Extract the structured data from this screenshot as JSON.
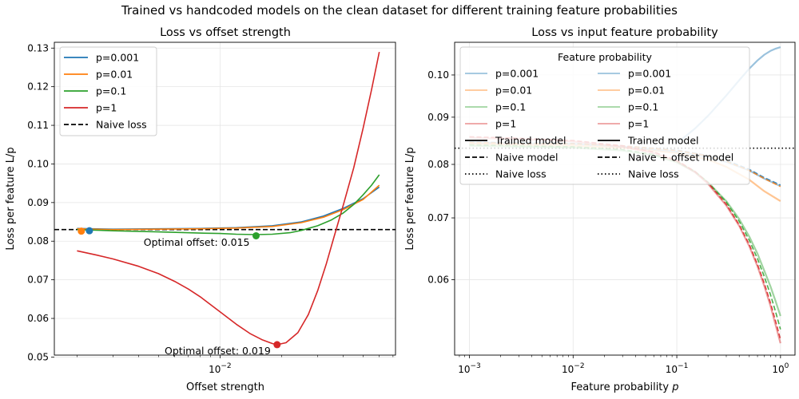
{
  "figure": {
    "suptitle": "Trained vs handcoded models on the clean dataset for different training feature probabilities"
  },
  "colors": {
    "p=0.001": "#1f77b4",
    "p=0.01": "#ff7f0e",
    "p=0.1": "#2ca02c",
    "p=1": "#d62728",
    "naive": "#000000",
    "grid": "#e6e6e6"
  },
  "chart_data": [
    {
      "type": "line",
      "title": "Loss vs offset strength",
      "xlabel": "Offset strength",
      "ylabel": "Loss per feature L/p",
      "xscale": "log",
      "xlim": [
        0.00155,
        0.072
      ],
      "ylim": [
        0.0505,
        0.1315
      ],
      "xticks": [
        {
          "value": 0.01,
          "label": "10^-2"
        }
      ],
      "yticks": [
        0.05,
        0.06,
        0.07,
        0.08,
        0.09,
        0.1,
        0.11,
        0.12,
        0.13
      ],
      "ytick_labels": [
        "0.05",
        "0.06",
        "0.07",
        "0.08",
        "0.09",
        "0.10",
        "0.11",
        "0.12",
        "0.13"
      ],
      "grid": true,
      "legend": {
        "location": "upper-left",
        "entries": [
          {
            "label": "p=0.001",
            "color": "#1f77b4",
            "style": "solid"
          },
          {
            "label": "p=0.01",
            "color": "#ff7f0e",
            "style": "solid"
          },
          {
            "label": "p=0.1",
            "color": "#2ca02c",
            "style": "solid"
          },
          {
            "label": "p=1",
            "color": "#d62728",
            "style": "solid"
          },
          {
            "label": "Naive loss",
            "color": "#000000",
            "style": "dashed"
          }
        ]
      },
      "series": [
        {
          "name": "p=0.001",
          "color": "#1f77b4",
          "x": [
            0.002,
            0.003,
            0.005,
            0.008,
            0.012,
            0.018,
            0.025,
            0.032,
            0.04,
            0.05,
            0.06
          ],
          "y": [
            0.0833,
            0.0831,
            0.0832,
            0.0833,
            0.0835,
            0.084,
            0.085,
            0.0865,
            0.0885,
            0.091,
            0.094
          ]
        },
        {
          "name": "p=0.01",
          "color": "#ff7f0e",
          "x": [
            0.002,
            0.003,
            0.005,
            0.008,
            0.012,
            0.018,
            0.025,
            0.032,
            0.04,
            0.05,
            0.06
          ],
          "y": [
            0.0832,
            0.083,
            0.0831,
            0.0832,
            0.0834,
            0.0838,
            0.0848,
            0.0862,
            0.0882,
            0.0908,
            0.0945
          ]
        },
        {
          "name": "p=0.1",
          "color": "#2ca02c",
          "x": [
            0.002,
            0.003,
            0.005,
            0.008,
            0.01,
            0.012,
            0.015,
            0.018,
            0.022,
            0.025,
            0.03,
            0.035,
            0.04,
            0.045,
            0.05,
            0.055,
            0.06
          ],
          "y": [
            0.083,
            0.0827,
            0.0824,
            0.0821,
            0.082,
            0.0818,
            0.0817,
            0.0818,
            0.0822,
            0.0828,
            0.084,
            0.0855,
            0.0873,
            0.0895,
            0.092,
            0.0945,
            0.0972
          ]
        },
        {
          "name": "p=1",
          "color": "#d62728",
          "x": [
            0.002,
            0.0025,
            0.003,
            0.004,
            0.005,
            0.006,
            0.007,
            0.008,
            0.01,
            0.012,
            0.014,
            0.016,
            0.018,
            0.019,
            0.021,
            0.024,
            0.027,
            0.03,
            0.033,
            0.036,
            0.04,
            0.045,
            0.05,
            0.055,
            0.06
          ],
          "y": [
            0.0775,
            0.0764,
            0.0754,
            0.0735,
            0.0716,
            0.0696,
            0.0676,
            0.0656,
            0.0617,
            0.0585,
            0.0561,
            0.0545,
            0.0535,
            0.0532,
            0.0537,
            0.0563,
            0.061,
            0.0672,
            0.074,
            0.081,
            0.0893,
            0.099,
            0.1092,
            0.1192,
            0.129
          ]
        }
      ],
      "reference_lines": [
        {
          "label": "Naive loss",
          "y": 0.083,
          "style": "dashed",
          "color": "#000000"
        }
      ],
      "markers": [
        {
          "series": "p=0.001",
          "x": 0.0023,
          "y": 0.0827,
          "color": "#1f77b4"
        },
        {
          "series": "p=0.01",
          "x": 0.0021,
          "y": 0.0826,
          "color": "#ff7f0e"
        },
        {
          "series": "p=0.1",
          "x": 0.015,
          "y": 0.0814,
          "color": "#2ca02c"
        },
        {
          "series": "p=1",
          "x": 0.019,
          "y": 0.0532,
          "color": "#d62728"
        }
      ],
      "annotations": [
        {
          "text": "Optimal offset: 0.015",
          "x": 0.015,
          "y": 0.0796,
          "anchor": "end"
        },
        {
          "text": "Optimal offset: 0.019",
          "x": 0.019,
          "y": 0.0515,
          "anchor": "end"
        }
      ]
    },
    {
      "type": "line",
      "title": "Loss vs input feature probability",
      "xlabel": "Feature probability p",
      "ylabel": "Loss per feature L/p",
      "xscale": "log",
      "yscale": "log",
      "xlim": [
        0.00072,
        1.38
      ],
      "ylim": [
        0.0497,
        0.1085
      ],
      "xticks": [
        {
          "value": 0.001,
          "label": "10^-3"
        },
        {
          "value": 0.01,
          "label": "10^-2"
        },
        {
          "value": 0.1,
          "label": "10^-1"
        },
        {
          "value": 1,
          "label": "10^0"
        }
      ],
      "yticks": [
        0.06,
        0.07,
        0.08,
        0.09,
        0.1
      ],
      "ytick_labels": [
        "0.06",
        "0.07",
        "0.08",
        "0.09",
        "0.10"
      ],
      "grid": true,
      "legend": {
        "title": "Feature probability",
        "location": "upper-left",
        "columns": [
          [
            {
              "label": "p=0.001",
              "color": "#1f77b4",
              "style": "solid",
              "alpha": 0.45
            },
            {
              "label": "p=0.01",
              "color": "#ff7f0e",
              "style": "solid",
              "alpha": 0.45
            },
            {
              "label": "p=0.1",
              "color": "#2ca02c",
              "style": "solid",
              "alpha": 0.45
            },
            {
              "label": "p=1",
              "color": "#d62728",
              "style": "solid",
              "alpha": 0.45
            },
            {
              "label": "Trained model",
              "color": "#000000",
              "style": "solid",
              "alpha": 1
            },
            {
              "label": "Naive model",
              "color": "#000000",
              "style": "dashed",
              "alpha": 1
            },
            {
              "label": "Naive loss",
              "color": "#000000",
              "style": "dotted",
              "alpha": 1
            }
          ],
          [
            {
              "label": "p=0.001",
              "color": "#1f77b4",
              "style": "solid",
              "alpha": 0.45
            },
            {
              "label": "p=0.01",
              "color": "#ff7f0e",
              "style": "solid",
              "alpha": 0.45
            },
            {
              "label": "p=0.1",
              "color": "#2ca02c",
              "style": "solid",
              "alpha": 0.45
            },
            {
              "label": "p=1",
              "color": "#d62728",
              "style": "solid",
              "alpha": 0.45
            },
            {
              "label": "Trained model",
              "color": "#000000",
              "style": "solid",
              "alpha": 1
            },
            {
              "label": "Naive + offset model",
              "color": "#000000",
              "style": "dashed",
              "alpha": 1
            },
            {
              "label": "Naive loss",
              "color": "#000000",
              "style": "dotted",
              "alpha": 1
            }
          ]
        ]
      },
      "series": [
        {
          "name": "p=0.001 trained",
          "color": "#1f77b4",
          "style": "solid",
          "x": [
            0.001,
            0.003,
            0.01,
            0.03,
            0.1,
            0.2,
            0.3,
            0.5,
            0.7,
            1.0
          ],
          "y": [
            0.0845,
            0.0843,
            0.0842,
            0.0836,
            0.0826,
            0.0815,
            0.0805,
            0.0788,
            0.0772,
            0.0758
          ]
        },
        {
          "name": "p=0.001 naive",
          "color": "#1f77b4",
          "style": "dashed",
          "x": [
            0.001,
            0.003,
            0.01,
            0.03,
            0.1,
            0.2,
            0.3,
            0.5,
            0.7,
            1.0
          ],
          "y": [
            0.0846,
            0.0844,
            0.0843,
            0.0838,
            0.0829,
            0.0818,
            0.0808,
            0.079,
            0.0774,
            0.076
          ]
        },
        {
          "name": "p=0.01 trained",
          "color": "#ff7f0e",
          "style": "solid",
          "x": [
            0.001,
            0.003,
            0.01,
            0.03,
            0.1,
            0.2,
            0.3,
            0.5,
            0.7,
            1.0
          ],
          "y": [
            0.0842,
            0.084,
            0.0838,
            0.0834,
            0.0823,
            0.081,
            0.0795,
            0.077,
            0.0748,
            0.073
          ]
        },
        {
          "name": "p=0.01 naive",
          "color": "#ff7f0e",
          "style": "dashed",
          "x": [
            0.001,
            0.003,
            0.01,
            0.03,
            0.1,
            0.2,
            0.3,
            0.5,
            0.7,
            1.0
          ],
          "y": [
            0.0845,
            0.0843,
            0.0842,
            0.0838,
            0.0828,
            0.0817,
            0.0806,
            0.0788,
            0.0772,
            0.0757
          ]
        },
        {
          "name": "p=0.1 trained",
          "color": "#2ca02c",
          "style": "solid",
          "x": [
            0.001,
            0.003,
            0.01,
            0.03,
            0.06,
            0.1,
            0.15,
            0.2,
            0.3,
            0.4,
            0.5,
            0.6,
            0.7,
            0.8,
            0.9,
            1.0
          ],
          "y": [
            0.0838,
            0.0836,
            0.0834,
            0.0828,
            0.0818,
            0.0804,
            0.0785,
            0.0765,
            0.073,
            0.0698,
            0.0668,
            0.064,
            0.0613,
            0.059,
            0.0568,
            0.0548
          ]
        },
        {
          "name": "p=0.1 naive",
          "color": "#2ca02c",
          "style": "dashed",
          "x": [
            0.001,
            0.003,
            0.01,
            0.03,
            0.06,
            0.1,
            0.15,
            0.2,
            0.3,
            0.4,
            0.5,
            0.6,
            0.7,
            0.8,
            0.9,
            1.0
          ],
          "y": [
            0.084,
            0.0838,
            0.0836,
            0.083,
            0.082,
            0.0806,
            0.0786,
            0.0765,
            0.0728,
            0.0694,
            0.0662,
            0.0632,
            0.0604,
            0.0578,
            0.0553,
            0.053
          ]
        },
        {
          "name": "p=1 trained",
          "color": "#d62728",
          "style": "solid",
          "x": [
            0.001,
            0.003,
            0.01,
            0.03,
            0.06,
            0.1,
            0.15,
            0.2,
            0.3,
            0.4,
            0.5,
            0.6,
            0.7,
            0.8,
            0.9,
            1.0
          ],
          "y": [
            0.0855,
            0.0852,
            0.0847,
            0.0836,
            0.0823,
            0.0806,
            0.0784,
            0.0762,
            0.0722,
            0.0686,
            0.0652,
            0.062,
            0.059,
            0.0562,
            0.0535,
            0.0512
          ]
        },
        {
          "name": "p=1 naive",
          "color": "#d62728",
          "style": "dashed",
          "x": [
            0.001,
            0.003,
            0.01,
            0.03,
            0.06,
            0.1,
            0.15,
            0.2,
            0.3,
            0.4,
            0.5,
            0.6,
            0.7,
            0.8,
            0.9,
            1.0
          ],
          "y": [
            0.0857,
            0.0854,
            0.0849,
            0.0838,
            0.0825,
            0.0808,
            0.0786,
            0.0764,
            0.0724,
            0.0688,
            0.0655,
            0.0623,
            0.0594,
            0.0566,
            0.054,
            0.0517
          ]
        },
        {
          "name": "naive rising",
          "color": "#1f77b4",
          "style": "solid",
          "x": [
            0.1,
            0.15,
            0.2,
            0.3,
            0.4,
            0.5,
            0.6,
            0.7,
            0.8,
            0.9,
            1.0
          ],
          "y": [
            0.0843,
            0.0875,
            0.0903,
            0.095,
            0.0987,
            0.1016,
            0.1037,
            0.1052,
            0.1062,
            0.1068,
            0.1072
          ]
        }
      ],
      "reference_lines": [
        {
          "label": "Naive loss",
          "y": 0.0833,
          "style": "dotted",
          "color": "#000000"
        }
      ]
    }
  ]
}
